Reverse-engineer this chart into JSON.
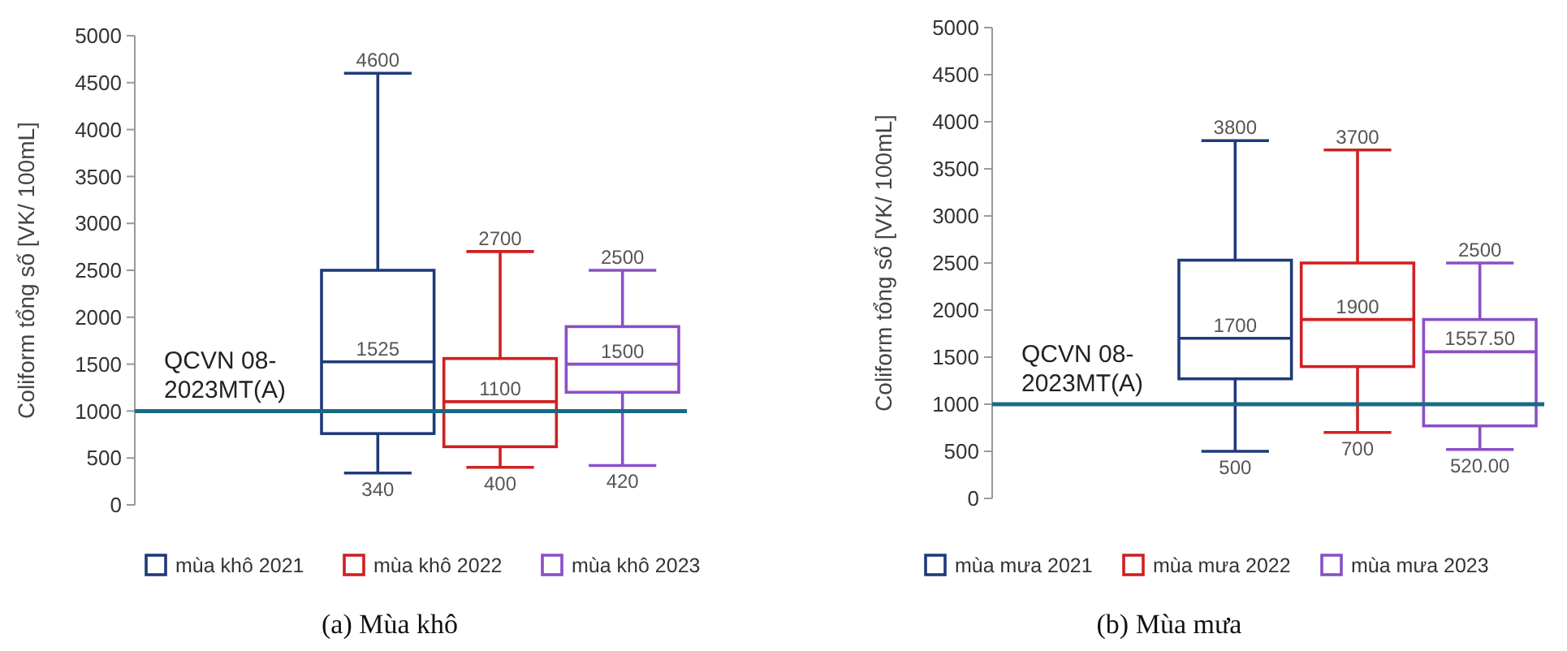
{
  "chart_data": [
    {
      "type": "box",
      "title": "(a)  Mùa khô",
      "ylabel": "Coliform tổng số [VK/ 100mL]",
      "categories": [
        null
      ],
      "ylim": [
        0,
        5000
      ],
      "yticks": [
        0,
        500,
        1000,
        1500,
        2000,
        2500,
        3000,
        3500,
        4000,
        4500,
        5000
      ],
      "legend": "bottom",
      "grid": false,
      "ref_lines": [
        {
          "axis": "y",
          "value": 1000,
          "label": "QCVN 08-2023MT(A)",
          "color": "#1a6a85"
        }
      ],
      "series": [
        {
          "name": "mùa khô 2021",
          "color": "#1f3a7a",
          "boxes": [
            {
              "low": 340,
              "q1": 760,
              "median": 1525,
              "q3": 2500,
              "high": 4600
            }
          ]
        },
        {
          "name": "mùa khô 2022",
          "color": "#d02020",
          "boxes": [
            {
              "low": 400,
              "q1": 620,
              "median": 1100,
              "q3": 1560,
              "high": 2700
            }
          ]
        },
        {
          "name": "mùa khô 2023",
          "color": "#8a4fc8",
          "boxes": [
            {
              "low": 420,
              "q1": 1200,
              "median": 1500,
              "q3": 1900,
              "high": 2500
            }
          ]
        }
      ],
      "annotations": [
        {
          "text": "4600",
          "y": 4600
        },
        {
          "text": "1525",
          "y": 1525
        },
        {
          "text": "340",
          "y": 340
        },
        {
          "text": "2700",
          "y": 2700
        },
        {
          "text": "1100",
          "y": 1100
        },
        {
          "text": "400",
          "y": 400
        },
        {
          "text": "2500",
          "y": 2500
        },
        {
          "text": "1500",
          "y": 1500
        },
        {
          "text": "420",
          "y": 420
        }
      ]
    },
    {
      "type": "box",
      "title": "(b)  Mùa mưa",
      "ylabel": "Coliform tổng số [VK/ 100mL]",
      "categories": [
        null
      ],
      "ylim": [
        0,
        5000
      ],
      "yticks": [
        0,
        500,
        1000,
        1500,
        2000,
        2500,
        3000,
        3500,
        4000,
        4500,
        5000
      ],
      "legend": "bottom",
      "grid": false,
      "ref_lines": [
        {
          "axis": "y",
          "value": 1000,
          "label": "QCVN 08-2023MT(A)",
          "color": "#1a6a85"
        }
      ],
      "series": [
        {
          "name": "mùa mưa 2021",
          "color": "#1f3a7a",
          "boxes": [
            {
              "low": 500,
              "q1": 1270,
              "median": 1700,
              "q3": 2530,
              "high": 3800
            }
          ]
        },
        {
          "name": "mùa mưa 2022",
          "color": "#d02020",
          "boxes": [
            {
              "low": 700,
              "q1": 1400,
              "median": 1900,
              "q3": 2500,
              "high": 3700
            }
          ]
        },
        {
          "name": "mùa mưa 2023",
          "color": "#8a4fc8",
          "boxes": [
            {
              "low": 520,
              "q1": 770,
              "median": 1557.5,
              "q3": 1900,
              "high": 2500
            }
          ]
        }
      ],
      "annotations": [
        {
          "text": "3800",
          "y": 3800
        },
        {
          "text": "1700",
          "y": 1700
        },
        {
          "text": "500",
          "y": 500
        },
        {
          "text": "3700",
          "y": 3700
        },
        {
          "text": "1900",
          "y": 1900
        },
        {
          "text": "700",
          "y": 700
        },
        {
          "text": "2500",
          "y": 2500
        },
        {
          "text": "1557.50",
          "y": 1557.5
        },
        {
          "text": "520.00",
          "y": 520
        }
      ]
    }
  ]
}
